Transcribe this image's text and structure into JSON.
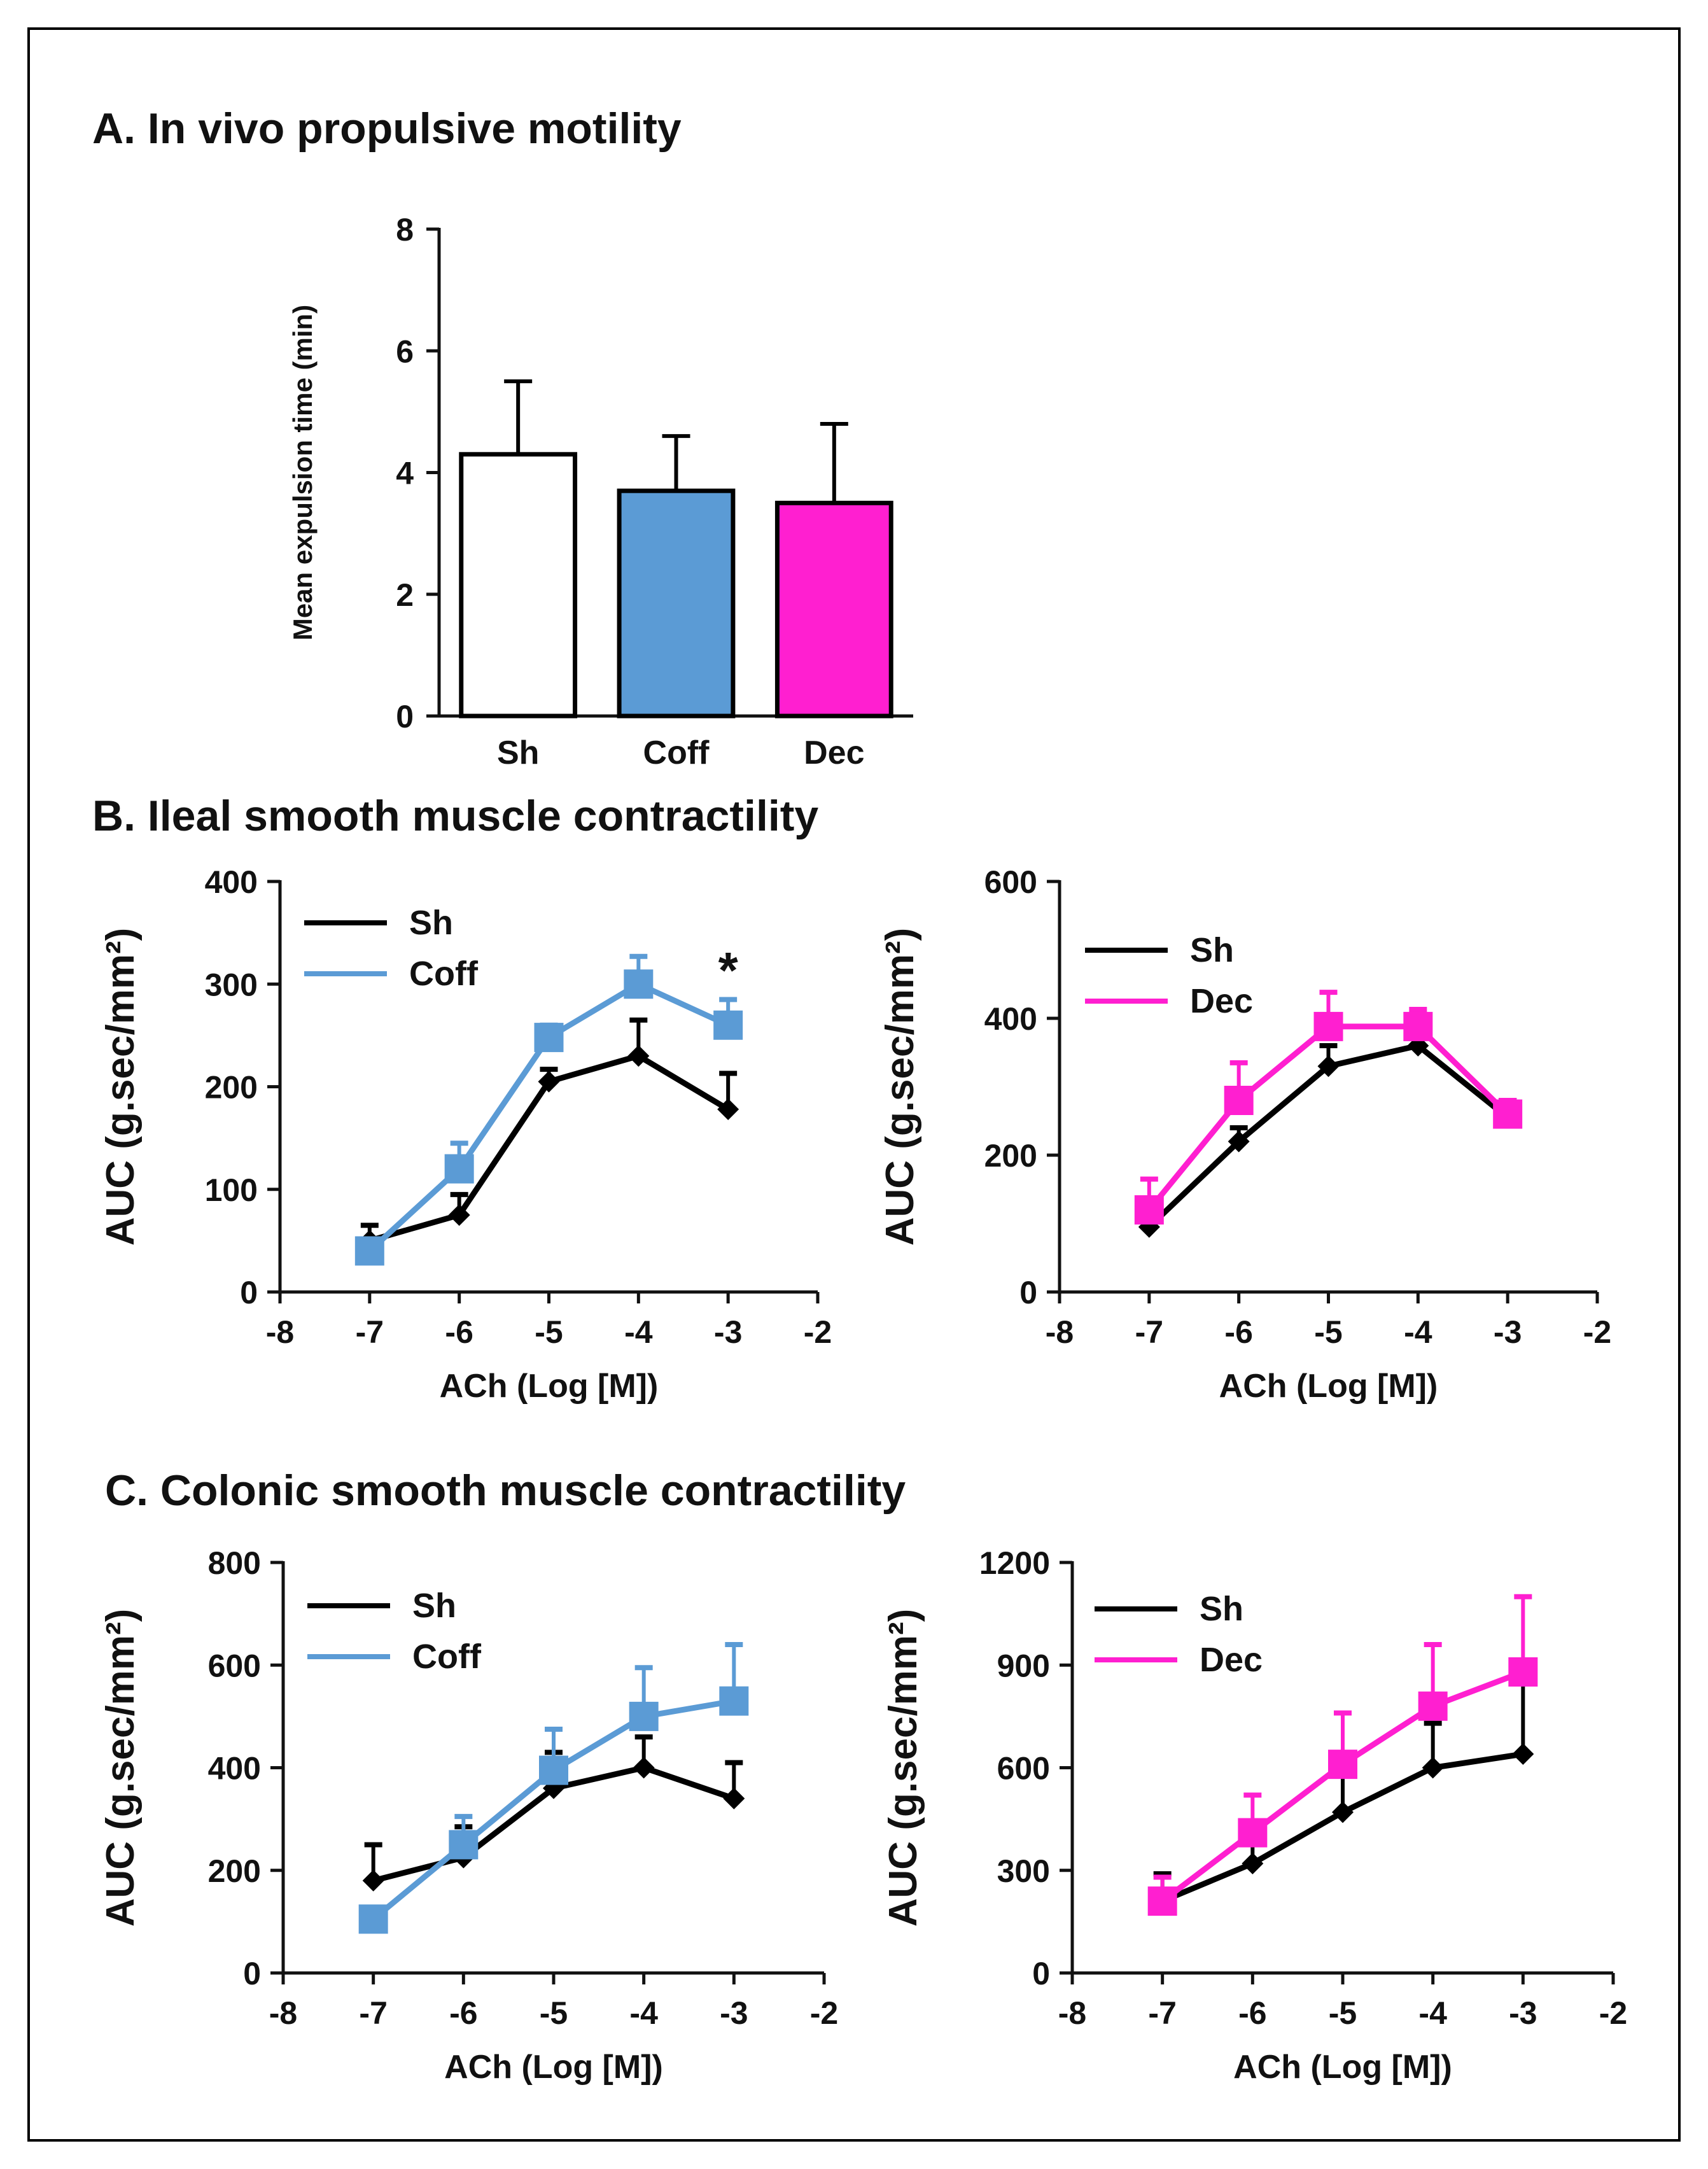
{
  "colors": {
    "black": "#000000",
    "blue": "#5b9bd5",
    "magenta": "#ff1fd0",
    "white": "#ffffff"
  },
  "ach_units": "M",
  "chart_data": [
    {
      "id": "A",
      "type": "bar",
      "section_title": "A. In vivo propulsive motility",
      "ylabel": "Mean expulsion time (min)",
      "xlabel": "",
      "ylim": [
        0,
        8
      ],
      "yticks": [
        0,
        2,
        4,
        6,
        8
      ],
      "categories": [
        "Sh",
        "Coff",
        "Dec"
      ],
      "values": [
        4.3,
        3.7,
        3.5
      ],
      "errors": [
        1.2,
        0.9,
        1.3
      ],
      "colors": [
        "#ffffff",
        "#5b9bd5",
        "#ff1fd0"
      ]
    },
    {
      "id": "B1",
      "type": "line",
      "section_title": "B. Ileal smooth muscle contractility",
      "ylabel": "AUC (g.sec/mm²)",
      "xlabel": "ACh (Log [M])",
      "xlim": [
        -8,
        -2
      ],
      "xticks": [
        -8,
        -7,
        -6,
        -5,
        -4,
        -3,
        -2
      ],
      "ylim": [
        0,
        400
      ],
      "yticks": [
        0,
        100,
        200,
        300,
        400
      ],
      "series": [
        {
          "name": "Sh",
          "color": "#000000",
          "marker": "diamond",
          "x": [
            -7,
            -6,
            -5,
            -4,
            -3
          ],
          "y": [
            50,
            75,
            205,
            230,
            178
          ],
          "err": [
            15,
            20,
            12,
            35,
            35
          ]
        },
        {
          "name": "Coff",
          "color": "#5b9bd5",
          "marker": "square",
          "x": [
            -7,
            -6,
            -5,
            -4,
            -3
          ],
          "y": [
            40,
            120,
            248,
            300,
            260
          ],
          "err": [
            10,
            25,
            12,
            27,
            25
          ]
        }
      ],
      "annotations": [
        {
          "text": "*",
          "x": -3,
          "y": 315
        }
      ]
    },
    {
      "id": "B2",
      "type": "line",
      "section_title": "",
      "ylabel": "AUC (g.sec/mm²)",
      "xlabel": "ACh (Log [M])",
      "xlim": [
        -8,
        -2
      ],
      "xticks": [
        -8,
        -7,
        -6,
        -5,
        -4,
        -3,
        -2
      ],
      "ylim": [
        0,
        600
      ],
      "yticks": [
        0,
        200,
        400,
        600
      ],
      "series": [
        {
          "name": "Sh",
          "color": "#000000",
          "marker": "diamond",
          "x": [
            -7,
            -6,
            -5,
            -4,
            -3
          ],
          "y": [
            95,
            220,
            330,
            360,
            255
          ],
          "err": [
            15,
            20,
            30,
            30,
            25
          ]
        },
        {
          "name": "Dec",
          "color": "#ff1fd0",
          "marker": "square",
          "x": [
            -7,
            -6,
            -5,
            -4,
            -3
          ],
          "y": [
            120,
            280,
            388,
            388,
            260
          ],
          "err": [
            45,
            55,
            50,
            25,
            20
          ]
        }
      ],
      "annotations": []
    },
    {
      "id": "C1",
      "type": "line",
      "section_title": "C. Colonic smooth muscle contractility",
      "ylabel": "AUC (g.sec/mm²)",
      "xlabel": "ACh (Log [M])",
      "xlim": [
        -8,
        -2
      ],
      "xticks": [
        -8,
        -7,
        -6,
        -5,
        -4,
        -3,
        -2
      ],
      "ylim": [
        0,
        800
      ],
      "yticks": [
        0,
        200,
        400,
        600,
        800
      ],
      "series": [
        {
          "name": "Sh",
          "color": "#000000",
          "marker": "diamond",
          "x": [
            -7,
            -6,
            -5,
            -4,
            -3
          ],
          "y": [
            180,
            225,
            360,
            400,
            340
          ],
          "err": [
            70,
            60,
            70,
            60,
            70
          ]
        },
        {
          "name": "Coff",
          "color": "#5b9bd5",
          "marker": "square",
          "x": [
            -7,
            -6,
            -5,
            -4,
            -3
          ],
          "y": [
            105,
            250,
            395,
            500,
            530
          ],
          "err": [
            20,
            55,
            80,
            95,
            110
          ]
        }
      ],
      "annotations": []
    },
    {
      "id": "C2",
      "type": "line",
      "section_title": "",
      "ylabel": "AUC (g.sec/mm²)",
      "xlabel": "ACh (Log [M])",
      "xlim": [
        -8,
        -2
      ],
      "xticks": [
        -8,
        -7,
        -6,
        -5,
        -4,
        -3,
        -2
      ],
      "ylim": [
        0,
        1200
      ],
      "yticks": [
        0,
        300,
        600,
        900,
        1200
      ],
      "series": [
        {
          "name": "Sh",
          "color": "#000000",
          "marker": "diamond",
          "x": [
            -7,
            -6,
            -5,
            -4,
            -3
          ],
          "y": [
            210,
            320,
            470,
            600,
            640
          ],
          "err": [
            80,
            60,
            130,
            130,
            230
          ]
        },
        {
          "name": "Dec",
          "color": "#ff1fd0",
          "marker": "square",
          "x": [
            -7,
            -6,
            -5,
            -4,
            -3
          ],
          "y": [
            210,
            410,
            610,
            780,
            880
          ],
          "err": [
            70,
            110,
            150,
            180,
            220
          ]
        }
      ],
      "annotations": []
    }
  ]
}
